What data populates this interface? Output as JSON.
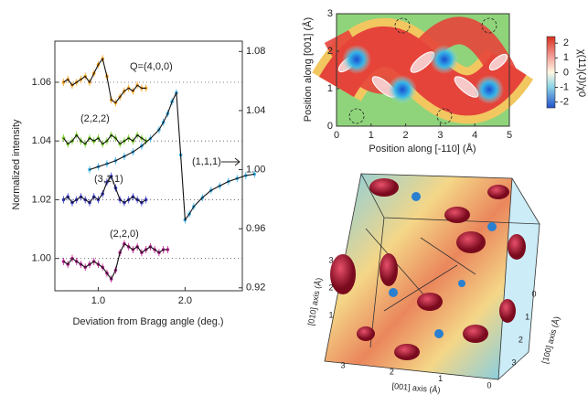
{
  "chart_data": [
    {
      "type": "line",
      "xlabel": "Deviation from Bragg angle (deg.)",
      "ylabel": "Normalized intensity",
      "xlim": [
        0.5,
        2.66
      ],
      "xticks": [
        {
          "value": 1,
          "label": "1.0"
        },
        {
          "value": 2,
          "label": "2.0"
        }
      ],
      "ylim": [
        0.989,
        1.074
      ],
      "yticks": [
        {
          "value": 1,
          "label": "1.00"
        },
        1.02,
        1.04,
        1.06
      ],
      "y2lim": [
        0.918,
        1.087
      ],
      "y2ticks": [
        0.92,
        0.96,
        {
          "value": 1,
          "label": "1.00"
        },
        1.04,
        1.08
      ],
      "grid": true,
      "series": [
        {
          "name": "Q=(4,0,0)",
          "color": "#f0a020",
          "x": [
            0.6,
            0.65,
            0.7,
            0.75,
            0.8,
            0.85,
            0.9,
            0.95,
            1.0,
            1.05,
            1.1,
            1.15,
            1.2,
            1.25,
            1.3,
            1.35,
            1.4,
            1.45,
            1.5,
            1.55
          ],
          "values": [
            1.06,
            1.061,
            1.059,
            1.06,
            1.061,
            1.062,
            1.06,
            1.063,
            1.066,
            1.068,
            1.062,
            1.054,
            1.053,
            1.055,
            1.057,
            1.058,
            1.057,
            1.059,
            1.058,
            1.058
          ]
        },
        {
          "name": "(2,2,2)",
          "color": "#7acc2a",
          "x": [
            0.6,
            0.65,
            0.7,
            0.75,
            0.8,
            0.85,
            0.9,
            0.95,
            1.0,
            1.05,
            1.1,
            1.15,
            1.2,
            1.25,
            1.3,
            1.35,
            1.4,
            1.45,
            1.5,
            1.55
          ],
          "values": [
            1.041,
            1.039,
            1.04,
            1.042,
            1.04,
            1.039,
            1.041,
            1.04,
            1.041,
            1.039,
            1.04,
            1.042,
            1.041,
            1.039,
            1.04,
            1.041,
            1.04,
            1.042,
            1.041,
            1.04
          ]
        },
        {
          "name": "(3,1,1)",
          "color": "#3a3ac8",
          "x": [
            0.6,
            0.65,
            0.7,
            0.75,
            0.8,
            0.85,
            0.9,
            0.95,
            1.0,
            1.05,
            1.1,
            1.15,
            1.2,
            1.25,
            1.3,
            1.35,
            1.4,
            1.45,
            1.5,
            1.55
          ],
          "values": [
            1.02,
            1.021,
            1.019,
            1.02,
            1.021,
            1.02,
            1.019,
            1.021,
            1.02,
            1.022,
            1.026,
            1.028,
            1.024,
            1.02,
            1.019,
            1.02,
            1.021,
            1.02,
            1.019,
            1.02
          ]
        },
        {
          "name": "(1,1,1)",
          "color": "#3ab0e8",
          "axis": "y2",
          "x": [
            0.9,
            1.0,
            1.1,
            1.2,
            1.3,
            1.4,
            1.5,
            1.6,
            1.7,
            1.75,
            1.8,
            1.85,
            1.9,
            1.95,
            2.0,
            2.05,
            2.1,
            2.2,
            2.3,
            2.4,
            2.5,
            2.6,
            2.7,
            2.8
          ],
          "values": [
            1.0,
            1.002,
            1.004,
            1.006,
            1.009,
            1.012,
            1.016,
            1.021,
            1.027,
            1.032,
            1.038,
            1.046,
            1.052,
            1.01,
            0.966,
            0.97,
            0.975,
            0.981,
            0.986,
            0.989,
            0.992,
            0.994,
            0.996,
            0.997
          ]
        },
        {
          "name": "(2,2,0)",
          "color": "#b8208f",
          "x": [
            0.6,
            0.65,
            0.7,
            0.75,
            0.8,
            0.85,
            0.9,
            0.95,
            1.0,
            1.05,
            1.1,
            1.15,
            1.2,
            1.25,
            1.3,
            1.35,
            1.4,
            1.45,
            1.5,
            1.55,
            1.6,
            1.65,
            1.7,
            1.75,
            1.8
          ],
          "values": [
            0.999,
            0.998,
            1.0,
            0.999,
            0.998,
            0.997,
            0.998,
            0.999,
            0.998,
            0.997,
            0.995,
            0.993,
            0.996,
            1.002,
            1.005,
            1.004,
            1.003,
            1.004,
            1.002,
            1.003,
            1.004,
            1.003,
            1.002,
            1.003,
            1.003
          ]
        }
      ]
    },
    {
      "type": "contour",
      "xlabel": "Position along [-110] (Å)",
      "ylabel": "Position along [001] (Å)",
      "xlim": [
        0,
        5
      ],
      "xticks": [
        0,
        1,
        2,
        3,
        4,
        5
      ],
      "ylim": [
        0,
        3
      ],
      "yticks": [
        0,
        1,
        2,
        3
      ],
      "colorbar_label": "χ(11)(J)/χ0",
      "clim": [
        -2.4,
        2.45
      ],
      "colorbar_ticks": [
        2,
        1,
        0,
        -1,
        -2
      ]
    },
    {
      "type": "isosurface",
      "axes": [
        {
          "label": "[010] axis (Å)",
          "lim": [
            0,
            3
          ],
          "ticks": [
            1,
            2,
            3
          ]
        },
        {
          "label": "[001] axis (Å)",
          "lim": [
            0,
            3
          ],
          "ticks": [
            3,
            2,
            1,
            0
          ]
        },
        {
          "label": "[100] axis (Å)",
          "lim": [
            0,
            3
          ],
          "ticks": [
            0,
            1,
            2,
            3
          ]
        }
      ]
    }
  ]
}
